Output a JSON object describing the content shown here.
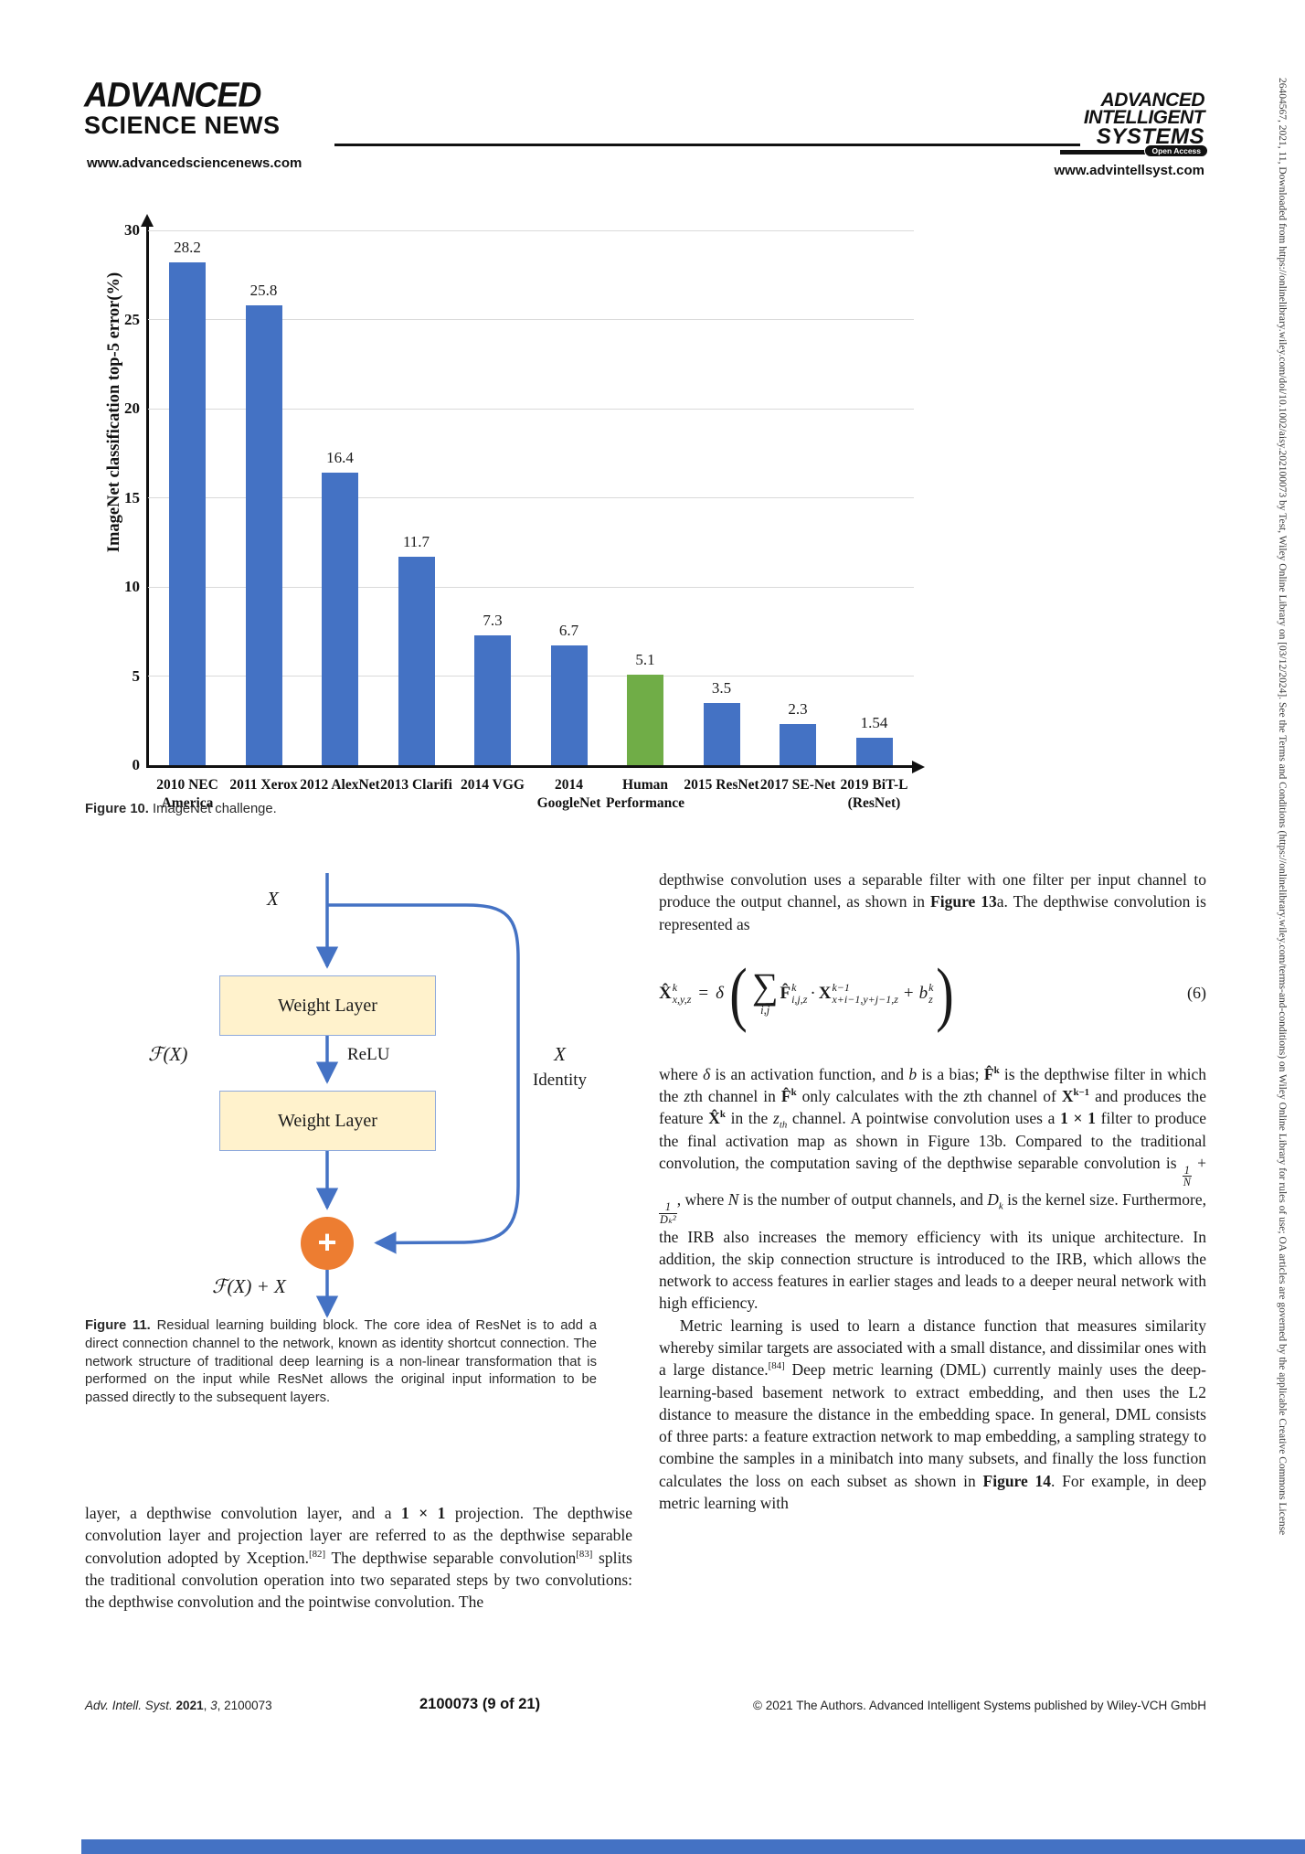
{
  "header": {
    "left_logo_line1": "ADVANCED",
    "left_logo_line2": "SCIENCE NEWS",
    "left_url": "www.advancedsciencenews.com",
    "right_logo_line1": "ADVANCED",
    "right_logo_line2": "INTELLIGENT",
    "right_logo_line3": "SYSTEMS",
    "right_badge": "Open Access",
    "right_url": "www.advintellsyst.com"
  },
  "chart_data": {
    "type": "bar",
    "title": "",
    "xlabel": "",
    "ylabel": "ImageNet classification top-5 error(%)",
    "ylim": [
      0,
      30
    ],
    "yticks": [
      0,
      5,
      10,
      15,
      20,
      25,
      30
    ],
    "categories": [
      [
        "2010 NEC",
        "America"
      ],
      [
        "2011 Xerox"
      ],
      [
        "2012 AlexNet"
      ],
      [
        "2013 Clarifi"
      ],
      [
        "2014 VGG"
      ],
      [
        "2014",
        "GoogleNet"
      ],
      [
        "Human",
        "Performance"
      ],
      [
        "2015 ResNet"
      ],
      [
        "2017 SE-Net"
      ],
      [
        "2019 BiT-L",
        "(ResNet)"
      ]
    ],
    "values": [
      28.2,
      25.8,
      16.4,
      11.7,
      7.3,
      6.7,
      5.1,
      3.5,
      2.3,
      1.54
    ],
    "display_values": [
      "28.2",
      "25.8",
      "16.4",
      "11.7",
      "7.3",
      "6.7",
      "5.1",
      "3.5",
      "2.3",
      "1.54"
    ],
    "bar_color": "#4472C4",
    "highlight_index": 6,
    "highlight_color": "#70AD47",
    "grid": true,
    "legend": null
  },
  "figure10_caption": {
    "label": "Figure 10.",
    "text": "ImageNet challenge."
  },
  "diagram": {
    "input_label": "X",
    "box1": "Weight Layer",
    "box2": "Weight Layer",
    "relu_label": "ReLU",
    "fx_label": "ℱ(X)",
    "identity_line1": "X",
    "identity_line2": "Identity",
    "plus": "+",
    "output_label": "ℱ(X) + X",
    "connector_color": "#4472C4",
    "box_fill": "#FFF2CC",
    "circle_fill": "#ED7D31"
  },
  "figure11_caption": {
    "label": "Figure 11.",
    "text": "Residual learning building block. The core idea of ResNet is to add a direct connection channel to the network, known as identity shortcut connection. The network structure of traditional deep learning is a non-linear transformation that is performed on the input while ResNet allows the original input information to be passed directly to the subsequent layers."
  },
  "left_column": {
    "para": [
      [
        "n",
        "layer, a depthwise convolution layer, and a "
      ],
      [
        "b",
        "1 × 1"
      ],
      [
        "n",
        " projection. The depthwise convolution layer and projection layer are referred to as the depthwise separable convolution adopted by Xception."
      ],
      [
        "sup",
        "[82]"
      ],
      [
        "n",
        " The depthwise separable convolution"
      ],
      [
        "sup",
        "[83]"
      ],
      [
        "n",
        " splits the traditional convolution operation into two separated steps by two convolutions: the depthwise convolution and the pointwise convolution. The"
      ]
    ]
  },
  "right_column": {
    "para1": [
      [
        "n",
        "depthwise convolution uses a separable filter with one filter per input channel to produce the output channel, as shown in "
      ],
      [
        "b",
        "Figure 13"
      ],
      [
        "n",
        "a. The depthwise convolution is represented as"
      ]
    ],
    "equation": {
      "lhs_base": "X̂",
      "lhs_sup": "k",
      "lhs_sub": "x,y,z",
      "equals": "=",
      "delta": "δ",
      "paren_open": "(",
      "sum_glyph": "∑",
      "sum_sub": "i,j",
      "f_base": "F̂",
      "f_sup": "k",
      "f_sub": "i,j,z",
      "dot": "·",
      "x_base": "X",
      "x_sup": "k−1",
      "x_sub": "x+i−1,y+j−1,z",
      "plus": "+",
      "b_base": "b",
      "b_sup": "k",
      "b_sub": "z",
      "paren_close": ")",
      "number": "(6)"
    },
    "para2": [
      [
        "n",
        "where "
      ],
      [
        "i",
        "δ"
      ],
      [
        "n",
        " is an activation function, and "
      ],
      [
        "i",
        "b"
      ],
      [
        "n",
        " is a bias; "
      ],
      [
        "b",
        "F̂"
      ],
      [
        "bsup",
        "k"
      ],
      [
        "n",
        " is the depthwise filter in which the "
      ],
      [
        "i",
        "z"
      ],
      [
        "n",
        "th channel in "
      ],
      [
        "b",
        "F̂"
      ],
      [
        "bsup",
        "k"
      ],
      [
        "n",
        " only calculates with the "
      ],
      [
        "i",
        "z"
      ],
      [
        "n",
        "th channel of "
      ],
      [
        "b",
        "X"
      ],
      [
        "bsup",
        "k−1"
      ],
      [
        "n",
        " and produces the feature "
      ],
      [
        "b",
        "X̂"
      ],
      [
        "bsup",
        "k"
      ],
      [
        "n",
        " in the "
      ],
      [
        "i",
        "z"
      ],
      [
        "isub",
        "th"
      ],
      [
        "n",
        " channel. A pointwise convolution uses a "
      ],
      [
        "b",
        "1 × 1"
      ],
      [
        "n",
        " filter to produce the final activation map as shown in Figure 13b. Compared to the traditional convolution, the computation saving of the depthwise separable convolution is "
      ],
      [
        "frac",
        "1|N"
      ],
      [
        "n",
        " + "
      ],
      [
        "frac",
        "1|Dₖ²"
      ],
      [
        "n",
        ", where "
      ],
      [
        "i",
        "N"
      ],
      [
        "n",
        " is the number of output channels, and "
      ],
      [
        "i",
        "D"
      ],
      [
        "isub",
        "k"
      ],
      [
        "n",
        " is the kernel size. Furthermore, the IRB also increases the memory efficiency with its unique architecture. In addition, the skip connection structure is introduced to the IRB, which allows the network to access features in earlier stages and leads to a deeper neural network with high efficiency."
      ]
    ],
    "para3": [
      [
        "n",
        "Metric learning is used to learn a distance function that measures similarity whereby similar targets are associated with a small distance, and dissimilar ones with a large distance."
      ],
      [
        "sup",
        "[84]"
      ],
      [
        "n",
        " Deep metric learning (DML) currently mainly uses the deep-learning-based basement network to extract embedding, and then uses the L2 distance to measure the distance in the embedding space. In general, DML consists of three parts: a feature extraction network to map embedding, a sampling strategy to combine the samples in a minibatch into many subsets, and finally the loss function calculates the loss on each subset as shown in "
      ],
      [
        "b",
        "Figure 14"
      ],
      [
        "n",
        ". For example, in deep metric learning with"
      ]
    ]
  },
  "footer": {
    "left": [
      [
        "i",
        "Adv. Intell. Syst. "
      ],
      [
        "b",
        "2021"
      ],
      [
        "n",
        ", "
      ],
      [
        "i",
        "3"
      ],
      [
        "n",
        ", 2100073"
      ]
    ],
    "center": "2100073 (9 of 21)",
    "right": "© 2021 The Authors. Advanced Intelligent Systems published by Wiley-VCH GmbH"
  },
  "sidebar_text": "26404567, 2021, 11, Downloaded from https://onlinelibrary.wiley.com/doi/10.1002/aisy.202100073 by Test, Wiley Online Library on [03/12/2024]. See the Terms and Conditions (https://onlinelibrary.wiley.com/terms-and-conditions) on Wiley Online Library for rules of use; OA articles are governed by the applicable Creative Commons License",
  "colors": {
    "bar_blue": "#4472C4",
    "bar_green": "#70AD47",
    "circle_orange": "#ED7D31",
    "box_yellow": "#FFF2CC",
    "gridline": "#DADADA",
    "bottom_bar": "#4472C4"
  }
}
